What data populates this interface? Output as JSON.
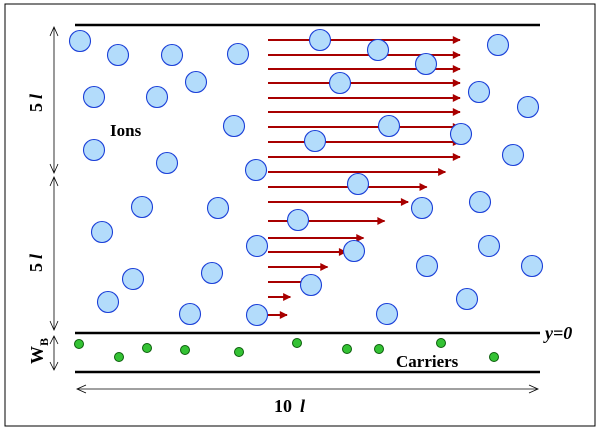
{
  "labels": {
    "ions": "Ions",
    "carriers": "Carriers",
    "y0": "y=0",
    "five_l_top_num": "5",
    "five_l_top_var": "l",
    "five_l_bottom_num": "5",
    "five_l_bottom_var": "l",
    "wb_main": "W",
    "wb_sub": "B",
    "ten_l_num": "10",
    "ten_l_var": "l"
  },
  "colors": {
    "ion_fill": "#b3dcfb",
    "ion_stroke": "#1a3fd8",
    "carrier_fill": "#34c234",
    "carrier_stroke": "#0b5e0b",
    "arrow": "#a80000",
    "line": "#000000"
  }
}
